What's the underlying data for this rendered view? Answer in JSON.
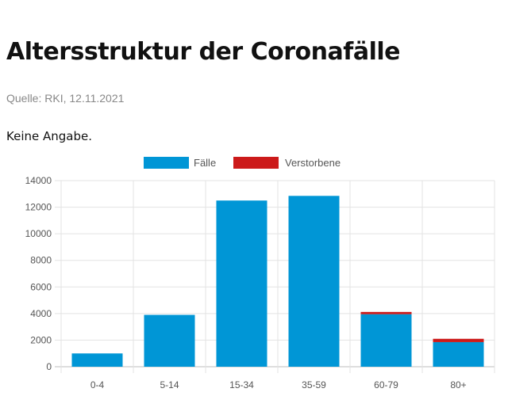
{
  "header": {
    "title": "Altersstruktur der Coronafälle",
    "source": "Quelle: RKI, 12.11.2021",
    "note": "Keine Angabe."
  },
  "colors": {
    "cases": "#0096d6",
    "deaths": "#cc1a1a",
    "grid": "#e3e3e3",
    "tick_text": "#555555"
  },
  "chart_data": {
    "type": "bar",
    "stacked": true,
    "categories": [
      "0-4",
      "5-14",
      "15-34",
      "35-59",
      "60-79",
      "80+"
    ],
    "series": [
      {
        "name": "Fälle",
        "color": "#0096d6",
        "values": [
          1000,
          3900,
          12500,
          12850,
          3950,
          1850
        ]
      },
      {
        "name": "Verstorbene",
        "color": "#cc1a1a",
        "values": [
          0,
          0,
          0,
          0,
          170,
          250
        ]
      }
    ],
    "ylim": [
      0,
      14000
    ],
    "yticks": [
      0,
      2000,
      4000,
      6000,
      8000,
      10000,
      12000,
      14000
    ],
    "ytick_labels": [
      "0",
      "2000",
      "4000",
      "6000",
      "8000",
      "10000",
      "12000",
      "14000"
    ],
    "legend": {
      "position": "top-center"
    },
    "grid": true
  }
}
